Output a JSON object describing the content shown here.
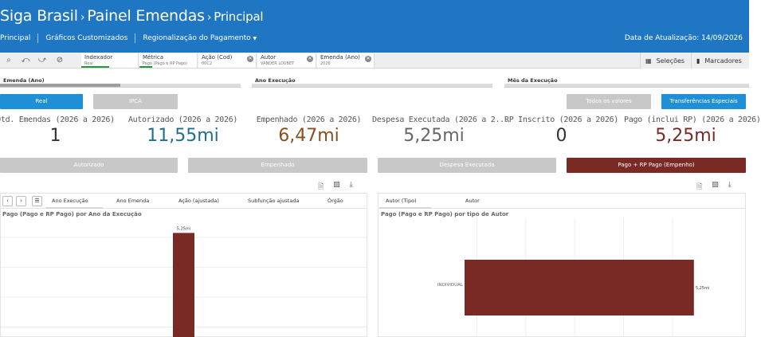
{
  "header": {
    "title_main": "Siga Brasil",
    "title_mid": "Painel Emendas",
    "title_sub": "Principal",
    "nav": [
      "Principal",
      "Gráficos Customizados",
      "Regionalização do Pagamento"
    ],
    "update_label": "Data de Atualização: 14/09/2026"
  },
  "selection_bar": {
    "tool_icons": [
      "smart-search-icon",
      "selections-back-icon",
      "selections-forward-icon",
      "clear-selections-icon"
    ],
    "chips": [
      {
        "title": "Indexador",
        "value": "Real"
      },
      {
        "title": "Métrica",
        "value": "Pago (Pago e RP Pago)"
      },
      {
        "title": "Ação (Cod)",
        "value": "00C2"
      },
      {
        "title": "Autor",
        "value": "VANDER LOUBET"
      },
      {
        "title": "Emenda (Ano)",
        "value": "2026"
      }
    ],
    "selections_label": "Seleções",
    "markers_label": "Marcadores"
  },
  "filters": [
    {
      "label": "Emenda (Ano)",
      "fill": 0.5
    },
    {
      "label": "Ano Execução",
      "fill": 0.0
    },
    {
      "label": "Mês da Execução",
      "fill": 0.0
    }
  ],
  "buttons": {
    "real": "Real",
    "ipca": "IPCA",
    "todos": "Todos os valores",
    "transferencias": "Transferências Especiais",
    "autorizado": "Autorizado",
    "empenhado": "Empenhado",
    "despesa": "Despesa Executada",
    "pago_rp": "Pago + RP Pago (Empenho)"
  },
  "kpis": [
    {
      "label": "Qtd. Emendas (2026 a 2026)",
      "value": "1",
      "color": "#333333"
    },
    {
      "label": "Autorizado (2026 a 2026)",
      "value": "11,55mi",
      "color": "#1f6f8b"
    },
    {
      "label": "Empenhado (2026 a 2026)",
      "value": "6,47mi",
      "color": "#8a4e1c"
    },
    {
      "label": "Despesa Executada (2026 a 2...",
      "value": "5,25mi",
      "color": "#666666"
    },
    {
      "label": "RP Inscrito (2026 a 2026)",
      "value": "0",
      "color": "#333333"
    },
    {
      "label": "Pago (inclui RP) (2026 a 2026)",
      "value": "5,25mi",
      "color": "#7a2a25"
    }
  ],
  "left_panel": {
    "tabs": [
      "Ano Execução",
      "Ano Emenda",
      "Ação (ajustada)",
      "Subfunção ajustada",
      "Órgão"
    ],
    "title": "Pago (Pago e RP Pago) por Ano da Execução"
  },
  "right_panel": {
    "tabs": [
      "Autor (Tipo)",
      "Autor"
    ],
    "title": "Pago (Pago e RP Pago) por tipo de Autor"
  },
  "chart_data": [
    {
      "type": "bar",
      "title": "Pago (Pago e RP Pago) por Ano da Execução",
      "categories": [
        ""
      ],
      "values": [
        5.25
      ],
      "data_labels": [
        "5,25mi"
      ],
      "ylim": [
        0,
        5.6
      ],
      "color": "#7a2a25",
      "grid": true
    },
    {
      "type": "bar",
      "orientation": "horizontal",
      "title": "Pago (Pago e RP Pago) por tipo de Autor",
      "categories": [
        "INDIVIDUAL"
      ],
      "values": [
        5.25
      ],
      "data_labels": [
        "5,25mi"
      ],
      "xlim": [
        0,
        5.6
      ],
      "color": "#7a2a25",
      "grid": true
    }
  ]
}
